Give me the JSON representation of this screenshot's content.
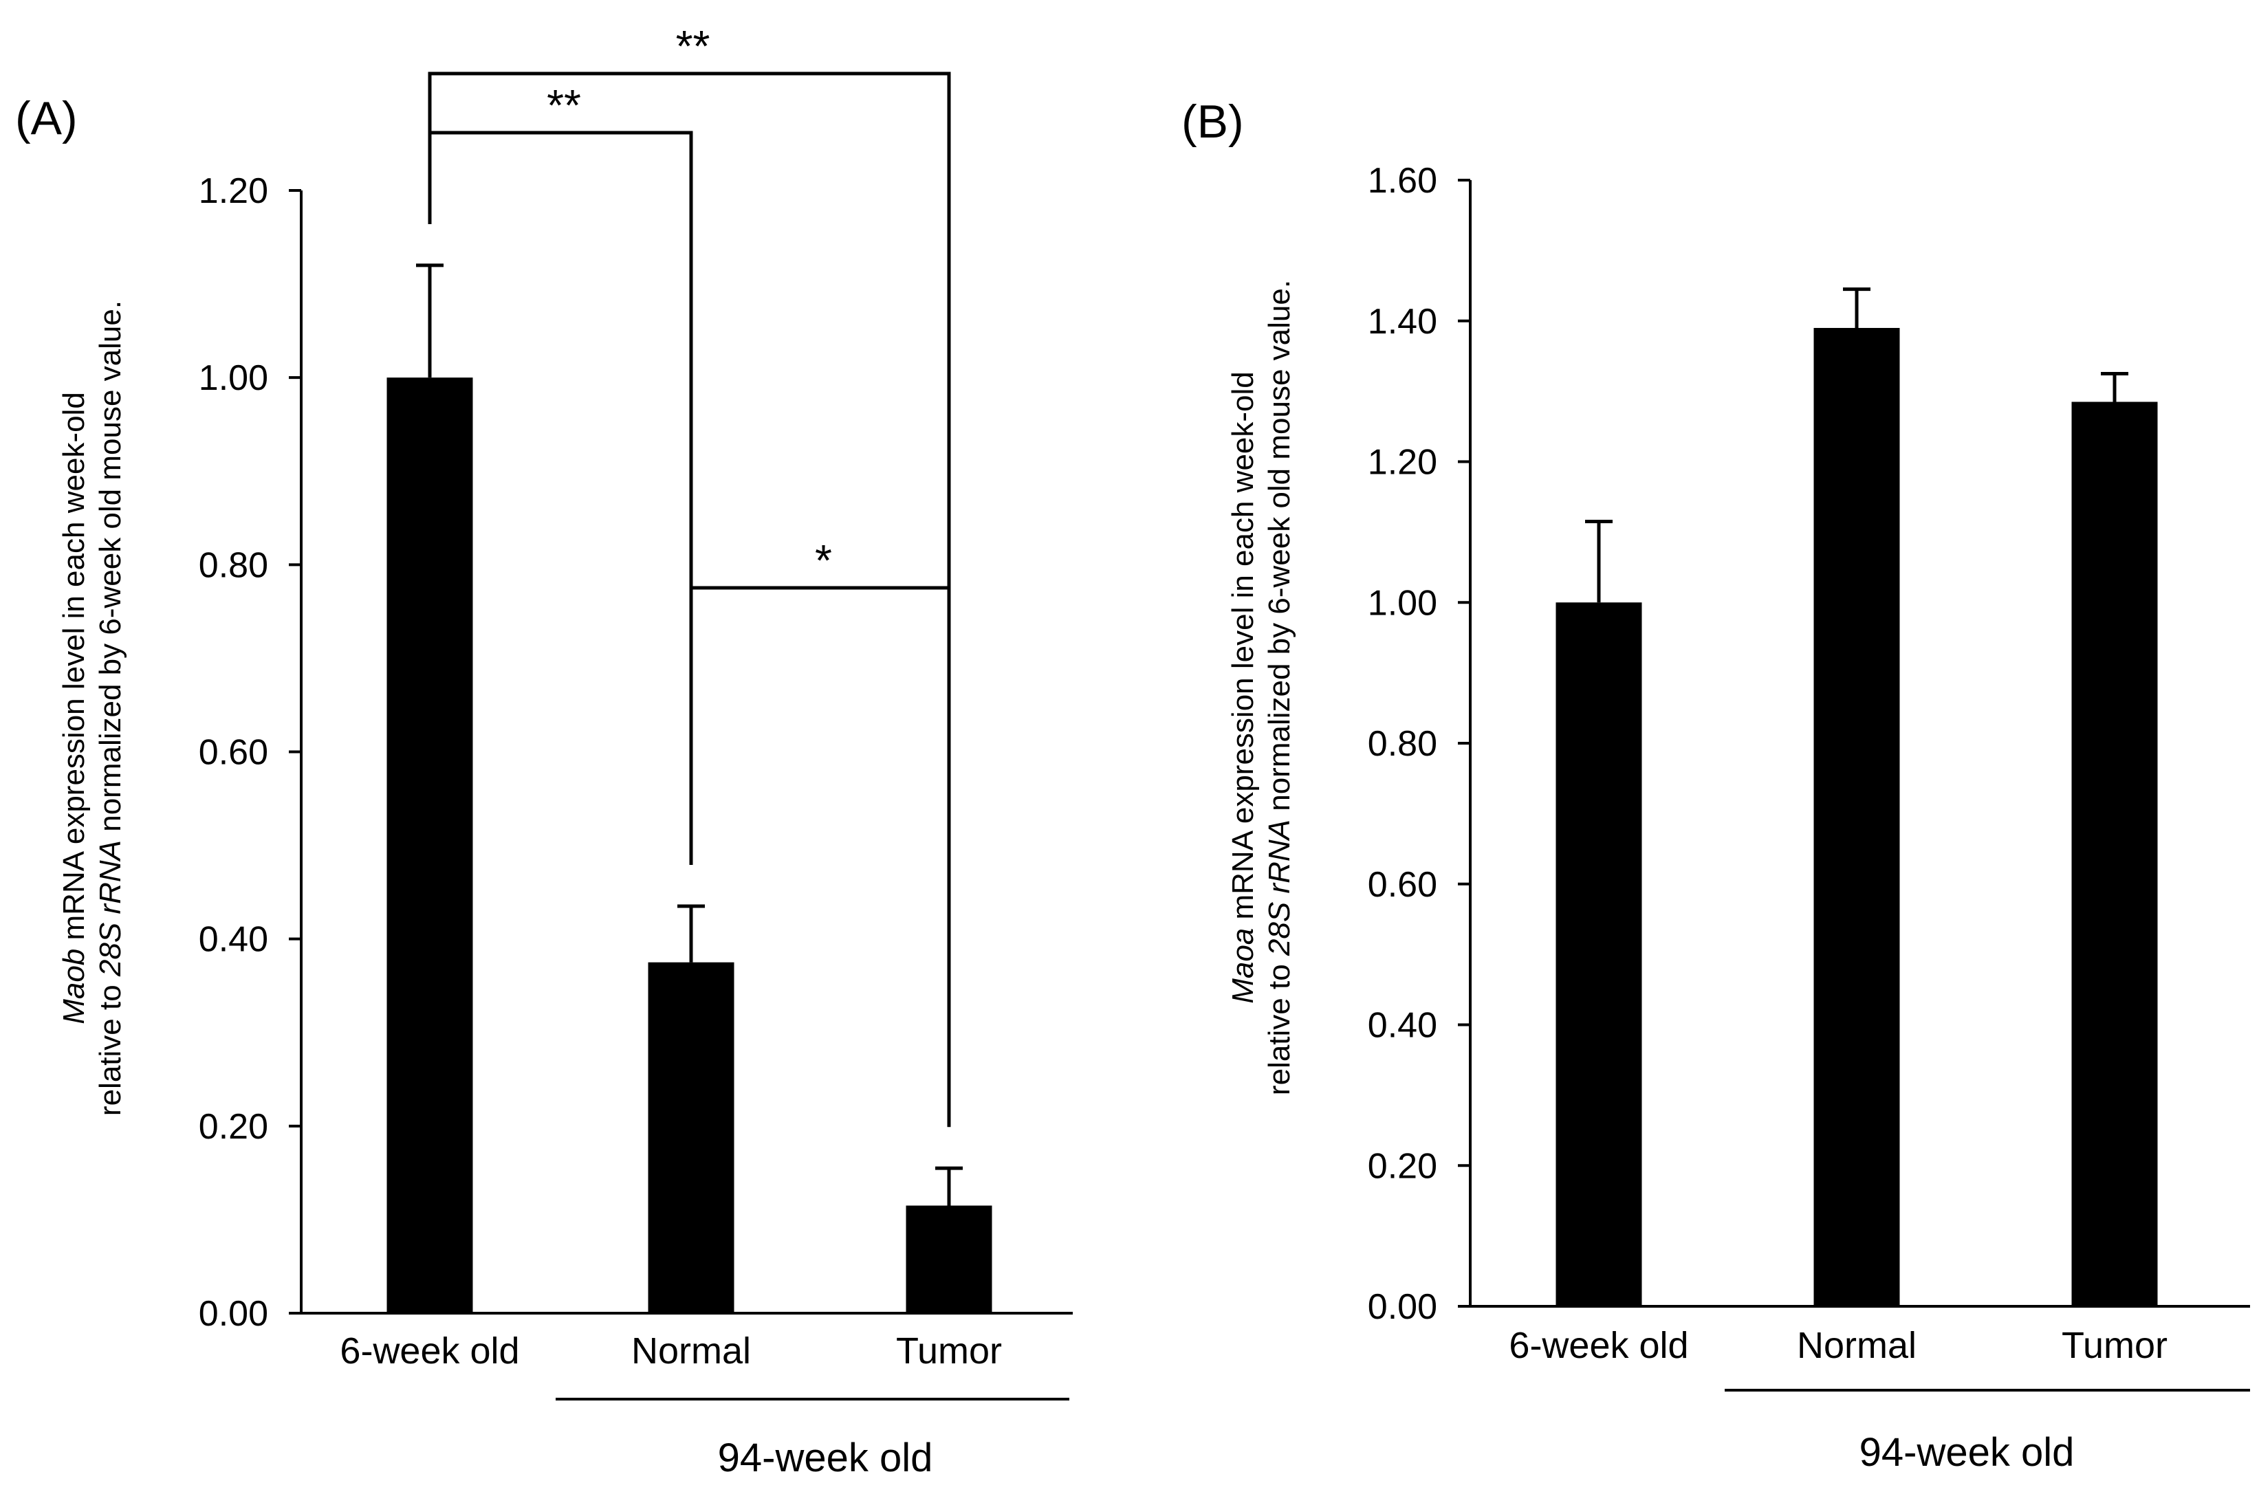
{
  "chart_data": [
    {
      "type": "bar",
      "panel_label": "(A)",
      "categories": [
        "6-week old",
        "Normal",
        "Tumor"
      ],
      "values": [
        1.0,
        0.375,
        0.115
      ],
      "error": [
        0.12,
        0.06,
        0.04
      ],
      "ylim": [
        0,
        1.2
      ],
      "yticks": [
        "0.00",
        "0.20",
        "0.40",
        "0.60",
        "0.80",
        "1.00",
        "1.20"
      ],
      "ylabel": {
        "line1_italic": "Maob",
        "line1_rest": " mRNA expression level in each week-old",
        "line2_pre": "relative to ",
        "line2_italic": "28S rRNA",
        "line2_post": " normalized by 6-week old mouse value."
      },
      "group_label": "94-week old",
      "significance": [
        {
          "from": 0,
          "to": 2,
          "label": "**"
        },
        {
          "from": 0,
          "to": 1,
          "label": "**"
        },
        {
          "from": 1,
          "to": 2,
          "label": "*"
        }
      ],
      "color": "#000000"
    },
    {
      "type": "bar",
      "panel_label": "(B)",
      "categories": [
        "6-week old",
        "Normal",
        "Tumor"
      ],
      "values": [
        1.0,
        1.39,
        1.285
      ],
      "error": [
        0.115,
        0.055,
        0.04
      ],
      "ylim": [
        0,
        1.6
      ],
      "yticks": [
        "0.00",
        "0.20",
        "0.40",
        "0.60",
        "0.80",
        "1.00",
        "1.20",
        "1.40",
        "1.60"
      ],
      "ylabel": {
        "line1_italic": "Maoa",
        "line1_rest": " mRNA expression level in each week-old",
        "line2_pre": "relative to ",
        "line2_italic": "28S rRNA",
        "line2_post": " normalized by 6-week old mouse value."
      },
      "group_label": "94-week old",
      "significance": [],
      "color": "#000000"
    }
  ]
}
